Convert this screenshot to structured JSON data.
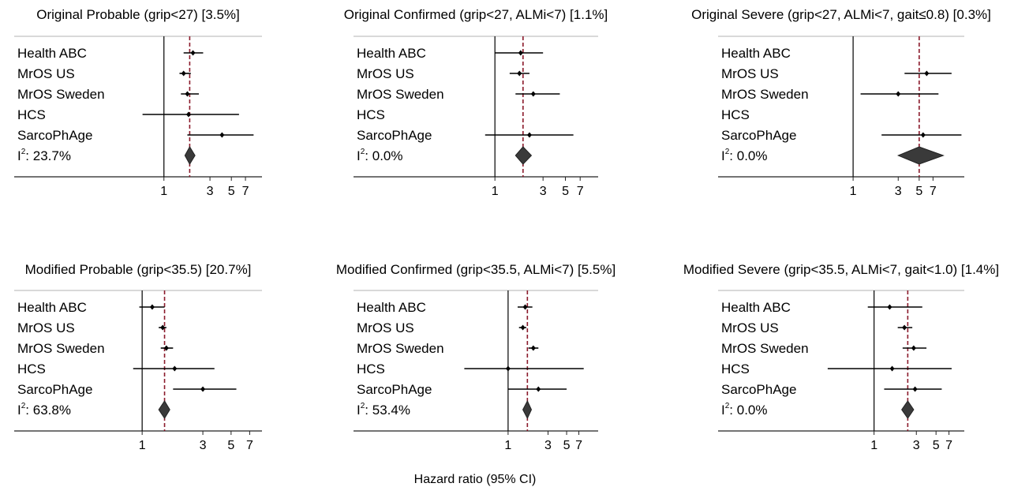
{
  "chart_data": {
    "type": "forest",
    "xlabel": "Hazard ratio (95% CI)",
    "x_scale": "log",
    "studies": [
      "Health ABC",
      "MrOS US",
      "MrOS Sweden",
      "HCS",
      "SarcoPhAge"
    ],
    "heterogeneity_prefix": "I",
    "heterogeneity_superscript": "2",
    "panels": [
      {
        "title": "Original Probable (grip<27) [3.5%]",
        "xlim": [
          0.55,
          10
        ],
        "ticks": [
          1,
          3,
          5,
          7
        ],
        "tick_labels": [
          "1",
          "3",
          "5",
          "7"
        ],
        "pooled": {
          "hr": 1.85,
          "lower": 1.65,
          "upper": 2.1
        },
        "i2": ": 23.7%",
        "series": [
          {
            "study": "Health ABC",
            "hr": 2.0,
            "lower": 1.6,
            "upper": 2.55
          },
          {
            "study": "MrOS US",
            "hr": 1.6,
            "lower": 1.45,
            "upper": 1.9
          },
          {
            "study": "MrOS Sweden",
            "hr": 1.75,
            "lower": 1.5,
            "upper": 2.3
          },
          {
            "study": "HCS",
            "hr": 1.8,
            "lower": 0.6,
            "upper": 6.0
          },
          {
            "study": "SarcoPhAge",
            "hr": 4.0,
            "lower": 1.75,
            "upper": 8.5
          }
        ]
      },
      {
        "title": "Original Confirmed (grip<27, ALMi<7) [1.1%]",
        "xlim": [
          0.55,
          10
        ],
        "ticks": [
          1,
          3,
          5,
          7
        ],
        "tick_labels": [
          "1",
          "3",
          "5",
          "7"
        ],
        "pooled": {
          "hr": 1.9,
          "lower": 1.6,
          "upper": 2.3
        },
        "i2": ": 0.0%",
        "series": [
          {
            "study": "Health ABC",
            "hr": 1.8,
            "lower": 1.0,
            "upper": 3.0
          },
          {
            "study": "MrOS US",
            "hr": 1.75,
            "lower": 1.4,
            "upper": 2.2
          },
          {
            "study": "MrOS Sweden",
            "hr": 2.4,
            "lower": 1.6,
            "upper": 4.4
          },
          {
            "study": "HCS",
            "hr": null,
            "lower": null,
            "upper": null
          },
          {
            "study": "SarcoPhAge",
            "hr": 2.2,
            "lower": 0.8,
            "upper": 6.0
          }
        ]
      },
      {
        "title": "Original Severe (grip<27, ALMi<7, gait≤0.8) [0.3%]",
        "xlim": [
          0.55,
          15
        ],
        "ticks": [
          1,
          3,
          5,
          7
        ],
        "tick_labels": [
          "1",
          "3",
          "5",
          "7"
        ],
        "pooled": {
          "hr": 5.0,
          "lower": 3.0,
          "upper": 9.0
        },
        "i2": ": 0.0%",
        "series": [
          {
            "study": "Health ABC",
            "hr": null,
            "lower": null,
            "upper": null
          },
          {
            "study": "MrOS US",
            "hr": 6.0,
            "lower": 3.5,
            "upper": 11.0
          },
          {
            "study": "MrOS Sweden",
            "hr": 3.0,
            "lower": 1.2,
            "upper": 8.0
          },
          {
            "study": "HCS",
            "hr": null,
            "lower": null,
            "upper": null
          },
          {
            "study": "SarcoPhAge",
            "hr": 5.5,
            "lower": 2.0,
            "upper": 14.0
          }
        ]
      },
      {
        "title": "Modified Probable (grip<35.5) [20.7%]",
        "xlim": [
          0.75,
          8.5
        ],
        "ticks": [
          1,
          3,
          5,
          7
        ],
        "tick_labels": [
          "1",
          "3",
          "5",
          "7"
        ],
        "pooled": {
          "hr": 1.5,
          "lower": 1.35,
          "upper": 1.65
        },
        "i2": ": 63.8%",
        "series": [
          {
            "study": "Health ABC",
            "hr": 1.2,
            "lower": 0.95,
            "upper": 1.5
          },
          {
            "study": "MrOS US",
            "hr": 1.45,
            "lower": 1.35,
            "upper": 1.55
          },
          {
            "study": "MrOS Sweden",
            "hr": 1.55,
            "lower": 1.4,
            "upper": 1.75
          },
          {
            "study": "HCS",
            "hr": 1.8,
            "lower": 0.85,
            "upper": 3.7
          },
          {
            "study": "SarcoPhAge",
            "hr": 3.0,
            "lower": 1.75,
            "upper": 5.5
          }
        ]
      },
      {
        "title": "Modified Confirmed (grip<35.5, ALMi<7) [5.5%]",
        "xlim": [
          0.25,
          10
        ],
        "ticks": [
          1,
          3,
          5,
          7
        ],
        "tick_labels": [
          "1",
          "3",
          "5",
          "7"
        ],
        "pooled": {
          "hr": 1.7,
          "lower": 1.5,
          "upper": 1.9
        },
        "i2": ": 53.4%",
        "series": [
          {
            "study": "Health ABC",
            "hr": 1.6,
            "lower": 1.3,
            "upper": 1.95
          },
          {
            "study": "MrOS US",
            "hr": 1.5,
            "lower": 1.35,
            "upper": 1.65
          },
          {
            "study": "MrOS Sweden",
            "hr": 2.0,
            "lower": 1.75,
            "upper": 2.3
          },
          {
            "study": "HCS",
            "hr": 1.0,
            "lower": 0.3,
            "upper": 8.0
          },
          {
            "study": "SarcoPhAge",
            "hr": 2.3,
            "lower": 1.0,
            "upper": 5.0
          }
        ]
      },
      {
        "title": "Modified Severe (grip<35.5, ALMi<7, gait<1.0) [1.4%]",
        "xlim": [
          0.25,
          10
        ],
        "ticks": [
          1,
          3,
          5,
          7
        ],
        "tick_labels": [
          "1",
          "3",
          "5",
          "7"
        ],
        "pooled": {
          "hr": 2.4,
          "lower": 2.05,
          "upper": 2.8
        },
        "i2": ": 0.0%",
        "series": [
          {
            "study": "Health ABC",
            "hr": 1.5,
            "lower": 0.85,
            "upper": 3.5
          },
          {
            "study": "MrOS US",
            "hr": 2.2,
            "lower": 1.85,
            "upper": 2.7
          },
          {
            "study": "MrOS Sweden",
            "hr": 2.8,
            "lower": 2.1,
            "upper": 3.9
          },
          {
            "study": "HCS",
            "hr": 1.6,
            "lower": 0.3,
            "upper": 7.5
          },
          {
            "study": "SarcoPhAge",
            "hr": 2.9,
            "lower": 1.3,
            "upper": 5.8
          }
        ]
      }
    ]
  }
}
